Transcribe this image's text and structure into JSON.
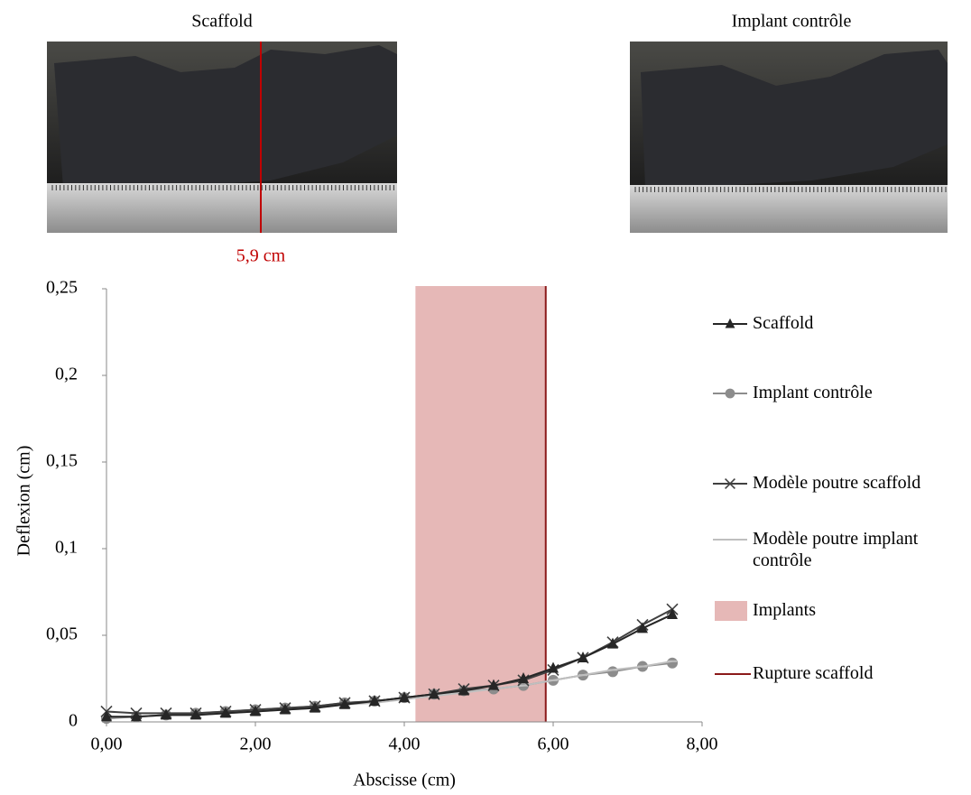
{
  "photos": [
    {
      "caption": "Scaffold",
      "annotation": "5,9 cm"
    },
    {
      "caption": "Implant contrôle"
    }
  ],
  "chart_data": {
    "type": "line",
    "xlabel": "Abscisse (cm)",
    "ylabel": "Deflexion (cm)",
    "x": [
      0,
      0.4,
      0.8,
      1.2,
      1.6,
      2.0,
      2.4,
      2.8,
      3.2,
      3.6,
      4.0,
      4.4,
      4.8,
      5.2,
      5.6,
      6.0,
      6.4,
      6.8,
      7.2,
      7.6
    ],
    "series": [
      {
        "name": "Scaffold",
        "color": "#262626",
        "marker": "triangle",
        "values": [
          0.003,
          0.003,
          0.004,
          0.004,
          0.005,
          0.006,
          0.007,
          0.008,
          0.01,
          0.012,
          0.014,
          0.016,
          0.018,
          0.021,
          0.025,
          0.031,
          0.037,
          0.045,
          0.054,
          0.062
        ]
      },
      {
        "name": "Implant contrôle",
        "color": "#8c8c8c",
        "marker": "circle",
        "values": [
          0.002,
          0.003,
          0.004,
          0.005,
          0.006,
          0.007,
          0.008,
          0.009,
          0.011,
          0.012,
          0.014,
          0.016,
          0.018,
          0.019,
          0.021,
          0.024,
          0.027,
          0.029,
          0.032,
          0.034
        ]
      },
      {
        "name": "Modèle poutre scaffold",
        "color": "#404040",
        "marker": "x",
        "values": [
          0.006,
          0.005,
          0.005,
          0.005,
          0.006,
          0.007,
          0.008,
          0.009,
          0.011,
          0.012,
          0.014,
          0.016,
          0.019,
          0.021,
          0.024,
          0.03,
          0.037,
          0.046,
          0.056,
          0.065
        ]
      },
      {
        "name": "Modèle poutre implant contrôle",
        "color": "#bfbfbf",
        "marker": "dash",
        "values": [
          0.003,
          0.003,
          0.004,
          0.004,
          0.005,
          0.006,
          0.007,
          0.008,
          0.01,
          0.011,
          0.013,
          0.015,
          0.017,
          0.019,
          0.021,
          0.024,
          0.027,
          0.03,
          0.032,
          0.035
        ]
      }
    ],
    "regions": [
      {
        "name": "Implants",
        "color": "#e6b8b7",
        "x": [
          4.15,
          5.9
        ]
      }
    ],
    "vlines": [
      {
        "name": "Rupture scaffold",
        "color": "#8b1a1a",
        "x": 5.9
      }
    ],
    "xlim": [
      0,
      8
    ],
    "xticks": [
      {
        "value": 0,
        "label": "0,00"
      },
      {
        "value": 2,
        "label": "2,00"
      },
      {
        "value": 4,
        "label": "4,00"
      },
      {
        "value": 6,
        "label": "6,00"
      },
      {
        "value": 8,
        "label": "8,00"
      }
    ],
    "ylim": [
      0,
      0.25
    ],
    "yticks": [
      0,
      {
        "value": 0.05,
        "label": "0,05"
      },
      {
        "value": 0.1,
        "label": "0,1"
      },
      {
        "value": 0.15,
        "label": "0,15"
      },
      {
        "value": 0.2,
        "label": "0,2"
      },
      {
        "value": 0.25,
        "label": "0,25"
      }
    ],
    "legend": "right"
  }
}
